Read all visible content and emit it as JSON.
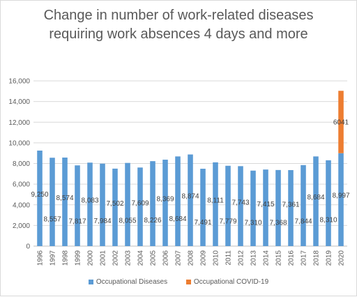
{
  "title": "Change in number of work-related diseases requiring work absences 4 days and more",
  "colors": {
    "occupational": "#5b9bd5",
    "covid": "#ed7d31",
    "grid": "#d9d9d9",
    "axis": "#bfbfbf"
  },
  "legend": [
    {
      "label": "Occupational Diseases"
    },
    {
      "label": "Occupational COVID-19"
    }
  ],
  "chart_data": {
    "type": "bar",
    "stacked": true,
    "title": "Change in number of work-related diseases requiring work absences 4 days and more",
    "categories": [
      "1996",
      "1997",
      "1998",
      "1999",
      "2000",
      "2001",
      "2002",
      "2003",
      "2004",
      "2005",
      "2006",
      "2007",
      "2008",
      "2009",
      "2010",
      "2011",
      "2012",
      "2013",
      "2014",
      "2015",
      "2016",
      "2017",
      "2018",
      "2019",
      "2020"
    ],
    "series": [
      {
        "name": "Occupational Diseases",
        "values": [
          9250,
          8557,
          8574,
          7817,
          8083,
          7984,
          7502,
          8055,
          7609,
          8226,
          8369,
          8684,
          8874,
          7491,
          8111,
          7779,
          7743,
          7310,
          7415,
          7368,
          7361,
          7844,
          8684,
          8310,
          8997
        ],
        "labels": [
          "9,250",
          "8,557",
          "8,574",
          "7,817",
          "8,083",
          "7,984",
          "7,502",
          "8,055",
          "7,609",
          "8,226",
          "8,369",
          "8,684",
          "8,874",
          "7,491",
          "8,111",
          "7,779",
          "7,743",
          "7,310",
          "7,415",
          "7,368",
          "7,361",
          "7,844",
          "8,684",
          "8,310",
          "8,997"
        ]
      },
      {
        "name": "Occupational COVID-19",
        "values": [
          null,
          null,
          null,
          null,
          null,
          null,
          null,
          null,
          null,
          null,
          null,
          null,
          null,
          null,
          null,
          null,
          null,
          null,
          null,
          null,
          null,
          null,
          null,
          null,
          6041
        ],
        "labels": [
          "",
          "",
          "",
          "",
          "",
          "",
          "",
          "",
          "",
          "",
          "",
          "",
          "",
          "",
          "",
          "",
          "",
          "",
          "",
          "",
          "",
          "",
          "",
          "",
          "6041"
        ]
      }
    ],
    "ylim": [
      0,
      16000
    ],
    "yticks": [
      "0",
      "2,000",
      "4,000",
      "6,000",
      "8,000",
      "10,000",
      "12,000",
      "14,000",
      "16,000"
    ],
    "grid": true,
    "legend_position": "bottom"
  }
}
